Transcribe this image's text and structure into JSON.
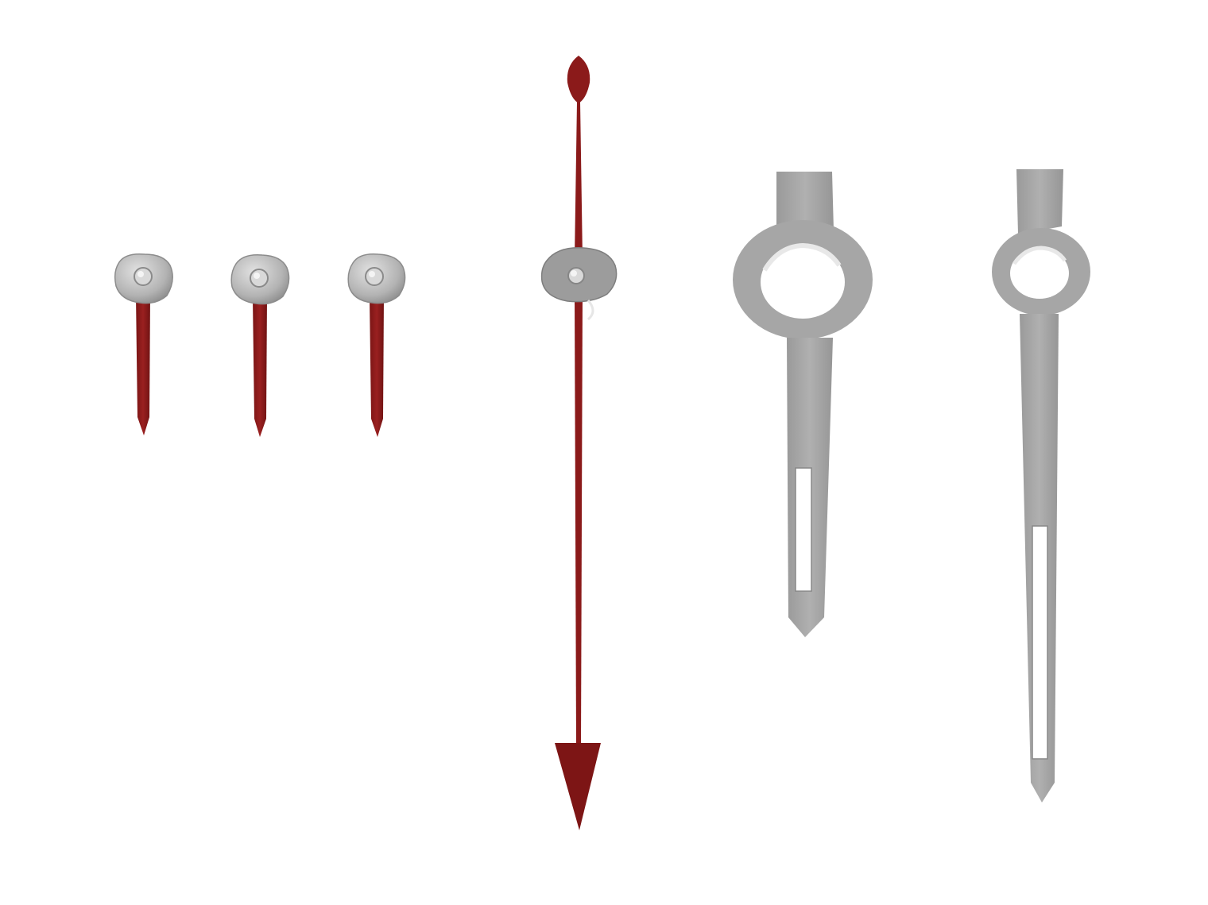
{
  "photo": {
    "background": "#ffffff",
    "colors": {
      "red_hand": "#8b1a1a",
      "red_hand_dark": "#6e1212",
      "silver": "#a9a9a9",
      "silver_light": "#d4d4d4",
      "silver_dark": "#8c8c8c",
      "hole": "#ffffff"
    },
    "items": [
      {
        "kind": "subdial-hand",
        "color": "red"
      },
      {
        "kind": "subdial-hand",
        "color": "red"
      },
      {
        "kind": "subdial-hand",
        "color": "red"
      },
      {
        "kind": "chronograph-seconds-hand",
        "color": "red"
      },
      {
        "kind": "hour-hand",
        "color": "silver"
      },
      {
        "kind": "minute-hand",
        "color": "silver"
      }
    ]
  }
}
